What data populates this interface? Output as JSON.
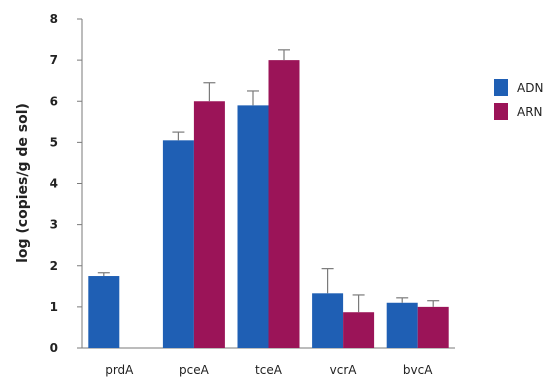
{
  "chart_data": {
    "type": "bar",
    "title": "",
    "xlabel": "",
    "ylabel": "log (copies/g de sol)",
    "ylim": [
      0,
      8
    ],
    "yticks": [
      0,
      1,
      2,
      3,
      4,
      5,
      6,
      7,
      8
    ],
    "categories": [
      "prdA",
      "pceA",
      "tceA",
      "vcrA",
      "bvcA"
    ],
    "series": [
      {
        "name": "ADN",
        "color": "#1f5fb4",
        "values": [
          1.75,
          5.05,
          5.9,
          1.33,
          1.1
        ],
        "errors": [
          0.08,
          0.2,
          0.35,
          0.6,
          0.12
        ]
      },
      {
        "name": "ARN",
        "color": "#9b1458",
        "values": [
          null,
          6.0,
          7.0,
          0.87,
          1.0
        ],
        "errors": [
          null,
          0.45,
          0.25,
          0.42,
          0.15
        ]
      }
    ],
    "grid": false,
    "legend_position": "right"
  }
}
